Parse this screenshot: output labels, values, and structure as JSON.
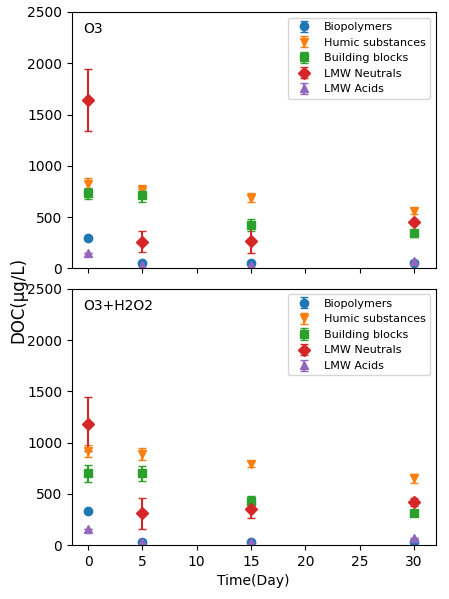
{
  "chart_data": [
    {
      "type": "scatter",
      "annotations": [
        "O3"
      ],
      "ylabel": "DOC(μg/L)",
      "x": [
        0,
        5,
        15,
        30
      ],
      "xlim": [
        -1.5,
        32
      ],
      "ylim": [
        0,
        2500
      ],
      "xticks": [
        0,
        5,
        10,
        15,
        20,
        25,
        30
      ],
      "yticks": [
        0,
        500,
        1000,
        1500,
        2000,
        2500
      ],
      "legend": "upper right",
      "tick_labels": "y",
      "series": [
        {
          "name": "Biopolymers",
          "marker": "o",
          "values": [
            300,
            50,
            50,
            50
          ],
          "errors": [
            0,
            0,
            0,
            0
          ]
        },
        {
          "name": "Humic substances",
          "marker": "v",
          "values": [
            820,
            760,
            690,
            560
          ],
          "errors": [
            60,
            50,
            40,
            30
          ]
        },
        {
          "name": "Building blocks",
          "marker": "s",
          "values": [
            730,
            710,
            420,
            340
          ],
          "errors": [
            50,
            60,
            60,
            30
          ]
        },
        {
          "name": "LMW Neutrals",
          "marker": "D",
          "values": [
            1640,
            260,
            270,
            450
          ],
          "errors": [
            300,
            100,
            120,
            20
          ]
        },
        {
          "name": "LMW Acids",
          "marker": "^",
          "values": [
            150,
            30,
            30,
            70
          ],
          "errors": [
            0,
            0,
            0,
            0
          ]
        }
      ]
    },
    {
      "type": "scatter",
      "annotations": [
        "O3+H2O2"
      ],
      "xlabel": "Time(Day)",
      "x": [
        0,
        5,
        15,
        30
      ],
      "xlim": [
        -1.5,
        32
      ],
      "ylim": [
        0,
        2500
      ],
      "xticks": [
        0,
        5,
        10,
        15,
        20,
        25,
        30
      ],
      "yticks": [
        0,
        500,
        1000,
        1500,
        2000,
        2500
      ],
      "legend": "upper right",
      "series": [
        {
          "name": "Biopolymers",
          "marker": "o",
          "values": [
            330,
            30,
            30,
            30
          ],
          "errors": [
            0,
            0,
            0,
            0
          ]
        },
        {
          "name": "Humic substances",
          "marker": "v",
          "values": [
            920,
            890,
            790,
            650
          ],
          "errors": [
            60,
            60,
            30,
            40
          ]
        },
        {
          "name": "Building blocks",
          "marker": "s",
          "values": [
            700,
            700,
            430,
            310
          ],
          "errors": [
            80,
            70,
            50,
            20
          ]
        },
        {
          "name": "LMW Neutrals",
          "marker": "D",
          "values": [
            1180,
            310,
            350,
            420
          ],
          "errors": [
            260,
            150,
            90,
            40
          ]
        },
        {
          "name": "LMW Acids",
          "marker": "^",
          "values": [
            160,
            30,
            30,
            70
          ],
          "errors": [
            0,
            0,
            0,
            0
          ]
        }
      ]
    }
  ]
}
